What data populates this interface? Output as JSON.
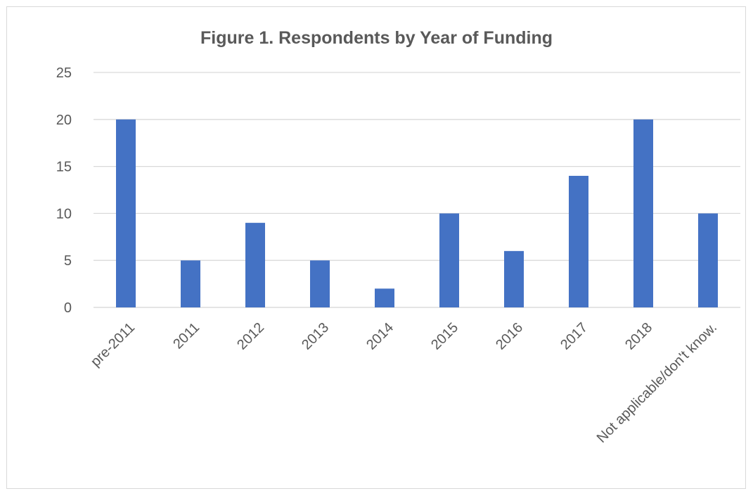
{
  "chart_data": {
    "type": "bar",
    "title": "Figure 1. Respondents by Year of Funding",
    "xlabel": "",
    "ylabel": "",
    "categories": [
      "pre-2011",
      "2011",
      "2012",
      "2013",
      "2014",
      "2015",
      "2016",
      "2017",
      "2018",
      "Not applicable/don't know."
    ],
    "values": [
      20,
      5,
      9,
      5,
      2,
      10,
      6,
      14,
      20,
      10
    ],
    "ylim": [
      0,
      25
    ],
    "yticks": [
      0,
      5,
      10,
      15,
      20,
      25
    ],
    "grid": true,
    "legend": "none",
    "bar_color": "#4472C4",
    "grid_color": "#d9d9d9",
    "text_color": "#595959"
  }
}
